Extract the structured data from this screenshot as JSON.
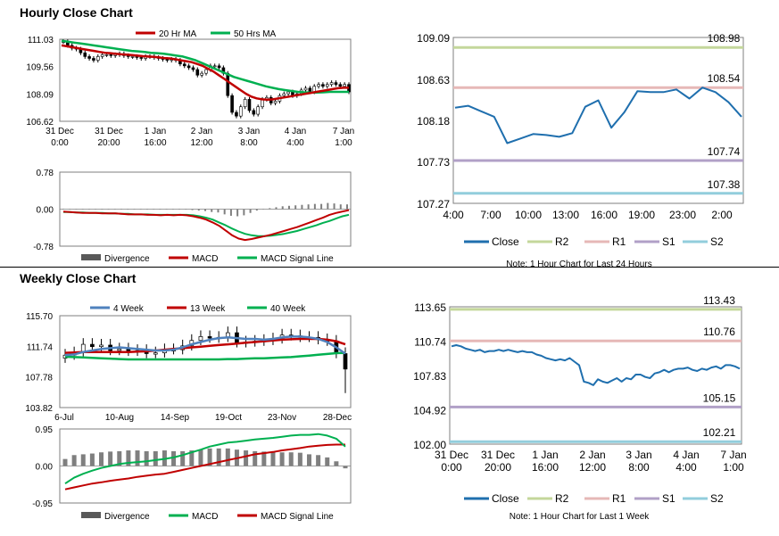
{
  "sections": {
    "hourly_title": "Hourly Close Chart",
    "weekly_title": "Weekly Close Chart"
  },
  "chart_data": [
    {
      "id": "hourly_price",
      "type": "candlestick",
      "title": "",
      "legend": [
        {
          "name": "20 Hr MA",
          "color": "#c00000"
        },
        {
          "name": "50 Hrs MA",
          "color": "#00b050"
        }
      ],
      "yticks": [
        "111.03",
        "109.56",
        "108.09",
        "106.62"
      ],
      "ylim": [
        106.62,
        111.03
      ],
      "xticks": [
        [
          "31 Dec",
          "0:00"
        ],
        [
          "31 Dec",
          "20:00"
        ],
        [
          "1 Jan",
          "16:00"
        ],
        [
          "2 Jan",
          "12:00"
        ],
        [
          "3 Jan",
          "8:00"
        ],
        [
          "4 Jan",
          "4:00"
        ],
        [
          "7 Jan",
          "1:00"
        ]
      ],
      "close": [
        110.9,
        110.7,
        110.55,
        110.5,
        110.3,
        110.1,
        110.0,
        109.9,
        110.1,
        110.2,
        110.2,
        110.15,
        110.2,
        110.25,
        110.15,
        110.1,
        110.1,
        110.05,
        110.0,
        110.1,
        110.1,
        110.05,
        110.0,
        109.95,
        109.9,
        109.95,
        109.9,
        109.7,
        109.6,
        109.5,
        109.4,
        109.1,
        109.2,
        109.4,
        109.6,
        109.6,
        109.5,
        109.2,
        108.0,
        107.1,
        106.9,
        107.4,
        107.8,
        107.2,
        107.0,
        107.4,
        107.8,
        107.9,
        107.6,
        107.7,
        108.0,
        108.1,
        108.2,
        108.0,
        108.1,
        108.3,
        108.4,
        108.2,
        108.5,
        108.6,
        108.5,
        108.6,
        108.7,
        108.6,
        108.5,
        108.6,
        108.2
      ],
      "ma20": [
        110.7,
        110.65,
        110.6,
        110.55,
        110.5,
        110.45,
        110.4,
        110.35,
        110.3,
        110.28,
        110.25,
        110.22,
        110.2,
        110.18,
        110.15,
        110.12,
        110.1,
        110.08,
        110.05,
        110.02,
        110.0,
        109.95,
        109.9,
        109.85,
        109.8,
        109.7,
        109.6,
        109.45,
        109.3,
        109.1,
        108.9,
        108.7,
        108.5,
        108.3,
        108.1,
        107.95,
        107.85,
        107.8,
        107.78,
        107.8,
        107.85,
        107.9,
        107.95,
        108.0,
        108.05,
        108.1,
        108.15,
        108.2,
        108.25,
        108.3,
        108.35,
        108.4,
        108.42,
        108.42
      ],
      "ma50": [
        110.95,
        110.9,
        110.85,
        110.8,
        110.75,
        110.7,
        110.65,
        110.6,
        110.55,
        110.5,
        110.45,
        110.4,
        110.38,
        110.35,
        110.3,
        110.28,
        110.25,
        110.2,
        110.15,
        110.1,
        110.0,
        109.9,
        109.75,
        109.6,
        109.45,
        109.3,
        109.15,
        109.0,
        108.9,
        108.8,
        108.7,
        108.6,
        108.5,
        108.42,
        108.35,
        108.3,
        108.25,
        108.2,
        108.18,
        108.17,
        108.17,
        108.18,
        108.2,
        108.2,
        108.2,
        108.2
      ]
    },
    {
      "id": "hourly_macd",
      "type": "line+bar",
      "yticks": [
        "0.78",
        "0.00",
        "-0.78"
      ],
      "ylim": [
        -0.78,
        0.78
      ],
      "legend": [
        {
          "name": "Divergence",
          "color": "#595959"
        },
        {
          "name": "MACD",
          "color": "#c00000"
        },
        {
          "name": "MACD Signal Line",
          "color": "#00b050"
        }
      ],
      "macd": [
        -0.05,
        -0.06,
        -0.07,
        -0.08,
        -0.08,
        -0.08,
        -0.09,
        -0.09,
        -0.09,
        -0.1,
        -0.11,
        -0.11,
        -0.11,
        -0.12,
        -0.12,
        -0.13,
        -0.12,
        -0.13,
        -0.12,
        -0.13,
        -0.15,
        -0.18,
        -0.22,
        -0.28,
        -0.35,
        -0.45,
        -0.55,
        -0.62,
        -0.65,
        -0.63,
        -0.6,
        -0.57,
        -0.54,
        -0.5,
        -0.46,
        -0.42,
        -0.38,
        -0.33,
        -0.28,
        -0.23,
        -0.18,
        -0.12,
        -0.08,
        -0.05,
        -0.02
      ],
      "signal": [
        -0.06,
        -0.06,
        -0.07,
        -0.07,
        -0.08,
        -0.08,
        -0.08,
        -0.09,
        -0.09,
        -0.1,
        -0.1,
        -0.11,
        -0.11,
        -0.11,
        -0.12,
        -0.12,
        -0.12,
        -0.12,
        -0.12,
        -0.12,
        -0.13,
        -0.15,
        -0.18,
        -0.22,
        -0.28,
        -0.34,
        -0.41,
        -0.47,
        -0.52,
        -0.55,
        -0.57,
        -0.57,
        -0.56,
        -0.54,
        -0.52,
        -0.49,
        -0.46,
        -0.42,
        -0.38,
        -0.34,
        -0.29,
        -0.25,
        -0.2,
        -0.15,
        -0.12
      ],
      "divergence": [
        0.01,
        0,
        0,
        -0.01,
        0,
        0,
        -0.01,
        0,
        0,
        0,
        -0.01,
        0,
        0,
        -0.01,
        0,
        -0.01,
        0,
        -0.01,
        0,
        -0.01,
        -0.02,
        -0.03,
        -0.04,
        -0.06,
        -0.07,
        -0.11,
        -0.14,
        -0.15,
        -0.13,
        -0.08,
        -0.03,
        0,
        0.02,
        0.04,
        0.06,
        0.07,
        0.08,
        0.09,
        0.1,
        0.11,
        0.11,
        0.13,
        0.12,
        0.1,
        0.1
      ]
    },
    {
      "id": "hourly_pivot",
      "type": "line",
      "yticks": [
        "109.09",
        "108.63",
        "108.18",
        "107.73",
        "107.27"
      ],
      "ylim": [
        107.27,
        109.09
      ],
      "xticks": [
        "4:00",
        "7:00",
        "10:00",
        "13:00",
        "16:00",
        "19:00",
        "23:00",
        "2:00"
      ],
      "levels": [
        {
          "name": "R2",
          "value": 108.98,
          "label": "108.98",
          "color": "#c4d79b"
        },
        {
          "name": "R1",
          "value": 108.54,
          "label": "108.54",
          "color": "#e6b8b7"
        },
        {
          "name": "S1",
          "value": 107.74,
          "label": "107.74",
          "color": "#b1a0c7"
        },
        {
          "name": "S2",
          "value": 107.38,
          "label": "107.38",
          "color": "#92cddc"
        }
      ],
      "close": [
        108.32,
        108.34,
        108.28,
        108.22,
        107.93,
        107.98,
        108.03,
        108.02,
        108.0,
        108.04,
        108.33,
        108.4,
        108.1,
        108.27,
        108.5,
        108.49,
        108.49,
        108.52,
        108.42,
        108.54,
        108.49,
        108.38,
        108.22
      ],
      "legend": [
        {
          "name": "Close",
          "color": "#1f6fae"
        },
        {
          "name": "R2",
          "color": "#c4d79b"
        },
        {
          "name": "R1",
          "color": "#e6b8b7"
        },
        {
          "name": "S1",
          "color": "#b1a0c7"
        },
        {
          "name": "S2",
          "color": "#92cddc"
        }
      ],
      "note": "Note: 1 Hour Chart for Last 24 Hours"
    },
    {
      "id": "weekly_price",
      "type": "candlestick",
      "yticks": [
        "115.70",
        "111.74",
        "107.78",
        "103.82"
      ],
      "ylim": [
        103.82,
        115.7
      ],
      "xticks": [
        "6-Jul",
        "10-Aug",
        "14-Sep",
        "19-Oct",
        "23-Nov",
        "28-Dec"
      ],
      "legend": [
        {
          "name": "4 Week",
          "color": "#4f81bd"
        },
        {
          "name": "13 Week",
          "color": "#c00000"
        },
        {
          "name": "40 Week",
          "color": "#00b050"
        }
      ],
      "close": [
        110.6,
        110.9,
        112.0,
        111.7,
        111.9,
        111.2,
        111.4,
        111.1,
        111.2,
        110.8,
        110.9,
        111.3,
        111.3,
        111.8,
        112.5,
        113.0,
        112.8,
        112.9,
        113.5,
        112.2,
        112.3,
        112.4,
        112.5,
        112.7,
        113.2,
        113.1,
        112.9,
        112.9,
        112.6,
        112.4,
        110.8,
        108.8
      ],
      "ma4": [
        110.6,
        110.7,
        111.0,
        111.2,
        111.4,
        111.5,
        111.6,
        111.5,
        111.4,
        111.3,
        111.2,
        111.2,
        111.3,
        111.6,
        112.0,
        112.3,
        112.6,
        112.8,
        112.9,
        112.8,
        112.7,
        112.7,
        112.6,
        112.7,
        112.9,
        113.0,
        113.0,
        112.9,
        112.7,
        112.3,
        111.6,
        110.8
      ],
      "ma13": [
        110.9,
        110.95,
        111.0,
        111.0,
        111.0,
        111.0,
        111.0,
        111.0,
        111.05,
        111.1,
        111.2,
        111.3,
        111.4,
        111.5,
        111.6,
        111.7,
        111.8,
        111.9,
        112.0,
        112.1,
        112.2,
        112.3,
        112.4,
        112.5,
        112.6,
        112.65,
        112.7,
        112.7,
        112.7,
        112.6,
        112.4,
        112.0
      ],
      "ma40": [
        110.4,
        110.35,
        110.3,
        110.25,
        110.2,
        110.15,
        110.1,
        110.05,
        110.05,
        110.05,
        110.05,
        110.05,
        110.05,
        110.05,
        110.05,
        110.05,
        110.05,
        110.05,
        110.1,
        110.1,
        110.15,
        110.2,
        110.2,
        110.25,
        110.3,
        110.35,
        110.45,
        110.55,
        110.65,
        110.75,
        110.85,
        110.9
      ]
    },
    {
      "id": "weekly_macd",
      "type": "line+bar",
      "yticks": [
        "0.95",
        "0.00",
        "-0.95"
      ],
      "ylim": [
        -0.95,
        0.95
      ],
      "legend": [
        {
          "name": "Divergence",
          "color": "#595959"
        },
        {
          "name": "MACD",
          "color": "#00b050"
        },
        {
          "name": "MACD Signal Line",
          "color": "#c00000"
        }
      ],
      "macd": [
        -0.45,
        -0.3,
        -0.2,
        -0.12,
        -0.05,
        0.0,
        0.05,
        0.08,
        0.1,
        0.12,
        0.15,
        0.18,
        0.22,
        0.28,
        0.35,
        0.42,
        0.5,
        0.55,
        0.6,
        0.62,
        0.65,
        0.68,
        0.7,
        0.72,
        0.75,
        0.78,
        0.8,
        0.8,
        0.82,
        0.78,
        0.7,
        0.5
      ],
      "signal": [
        -0.6,
        -0.55,
        -0.5,
        -0.45,
        -0.42,
        -0.38,
        -0.35,
        -0.32,
        -0.28,
        -0.25,
        -0.22,
        -0.2,
        -0.15,
        -0.1,
        -0.05,
        0.0,
        0.05,
        0.1,
        0.15,
        0.2,
        0.25,
        0.3,
        0.33,
        0.36,
        0.4,
        0.43,
        0.46,
        0.5,
        0.52,
        0.54,
        0.55,
        0.55
      ],
      "divergence": [
        0.18,
        0.28,
        0.3,
        0.32,
        0.35,
        0.37,
        0.38,
        0.4,
        0.4,
        0.38,
        0.38,
        0.4,
        0.38,
        0.38,
        0.4,
        0.42,
        0.45,
        0.45,
        0.45,
        0.42,
        0.4,
        0.38,
        0.37,
        0.36,
        0.35,
        0.35,
        0.34,
        0.3,
        0.28,
        0.22,
        0.12,
        -0.06
      ]
    },
    {
      "id": "weekly_pivot",
      "type": "line",
      "yticks": [
        "113.65",
        "110.74",
        "107.83",
        "104.92",
        "102.00"
      ],
      "ylim": [
        102.0,
        113.65
      ],
      "xticks": [
        [
          "31 Dec",
          "0:00"
        ],
        [
          "31 Dec",
          "20:00"
        ],
        [
          "1 Jan",
          "16:00"
        ],
        [
          "2 Jan",
          "12:00"
        ],
        [
          "3 Jan",
          "8:00"
        ],
        [
          "4 Jan",
          "4:00"
        ],
        [
          "7 Jan",
          "1:00"
        ]
      ],
      "levels": [
        {
          "name": "R2",
          "value": 113.43,
          "label": "113.43",
          "color": "#c4d79b"
        },
        {
          "name": "R1",
          "value": 110.76,
          "label": "110.76",
          "color": "#e6b8b7"
        },
        {
          "name": "S1",
          "value": 105.15,
          "label": "105.15",
          "color": "#b1a0c7"
        },
        {
          "name": "S2",
          "value": 102.21,
          "label": "102.21",
          "color": "#92cddc"
        }
      ],
      "close": [
        110.3,
        110.4,
        110.3,
        110.1,
        110.0,
        109.9,
        110.0,
        109.8,
        109.9,
        109.9,
        110.0,
        109.9,
        110.0,
        109.9,
        109.8,
        109.9,
        109.8,
        109.8,
        109.6,
        109.5,
        109.3,
        109.2,
        109.1,
        109.2,
        109.1,
        109.3,
        109.0,
        108.7,
        107.3,
        107.2,
        107.0,
        107.5,
        107.3,
        107.2,
        107.4,
        107.6,
        107.3,
        107.6,
        107.5,
        107.9,
        107.9,
        107.7,
        107.6,
        108.0,
        108.1,
        108.3,
        108.1,
        108.3,
        108.4,
        108.4,
        108.5,
        108.3,
        108.2,
        108.4,
        108.3,
        108.5,
        108.6,
        108.4,
        108.7,
        108.7,
        108.6,
        108.4
      ],
      "legend": [
        {
          "name": "Close",
          "color": "#1f6fae"
        },
        {
          "name": "R2",
          "color": "#c4d79b"
        },
        {
          "name": "R1",
          "color": "#e6b8b7"
        },
        {
          "name": "S1",
          "color": "#b1a0c7"
        },
        {
          "name": "S2",
          "color": "#92cddc"
        }
      ],
      "note": "Note: 1 Hour Chart for Last 1 Week"
    }
  ]
}
